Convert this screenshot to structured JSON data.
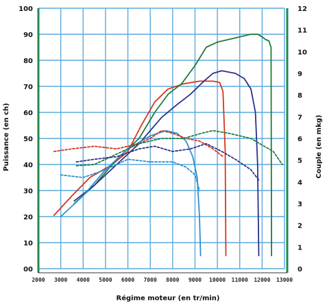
{
  "chart_data": {
    "type": "line",
    "title": "",
    "xlabel": "Régime moteur (en tr/min)",
    "ylabel": "Puissance (en ch)",
    "y2label": "Couple (en mkg)",
    "xlim": [
      2000,
      13000
    ],
    "ylim": [
      0,
      100
    ],
    "y2lim": [
      0,
      12
    ],
    "x_ticks": [
      2000,
      3000,
      4000,
      5000,
      6000,
      7000,
      8000,
      9000,
      10000,
      11000,
      12000,
      13000
    ],
    "x_tick_labels": [
      "2000",
      "3000",
      "4000",
      "5000",
      "6000",
      "7000",
      "8000",
      "9000",
      "10000",
      "11000",
      "12000",
      "13000"
    ],
    "y_ticks": [
      0,
      10,
      20,
      30,
      40,
      50,
      60,
      70,
      80,
      90,
      100
    ],
    "y_tick_labels": [
      "00",
      "10",
      "20",
      "30",
      "40",
      "50",
      "60",
      "70",
      "80",
      "90",
      "100"
    ],
    "y2_ticks": [
      0,
      1,
      2,
      3,
      4,
      5,
      6,
      7,
      8,
      9,
      10,
      11,
      12
    ],
    "y2_tick_labels": [
      "0",
      "1",
      "2",
      "3",
      "4",
      "5",
      "6",
      "7",
      "8",
      "9",
      "10",
      "11",
      "12"
    ],
    "grid": true,
    "colors": {
      "grid": "#5aa9dc",
      "axis": "#1f8a4c",
      "red": "#d4351c",
      "green": "#1d7a3a",
      "navy": "#2b2f86",
      "lightblue": "#2e8fd0"
    },
    "series": [
      {
        "color": "#d4351c",
        "dash": false,
        "axis": "left",
        "x": [
          2700,
          3500,
          4300,
          5300,
          6000,
          6600,
          7200,
          7800,
          8500,
          9200,
          9800,
          10100,
          10250,
          10350,
          10380
        ],
        "y": [
          20.5,
          28,
          35,
          40,
          45,
          55,
          64,
          69,
          71,
          72,
          72,
          71.5,
          68,
          45,
          5
        ]
      },
      {
        "color": "#1d7a3a",
        "dash": false,
        "axis": "left",
        "x": [
          3600,
          4500,
          5500,
          6500,
          7200,
          7800,
          8400,
          9000,
          9500,
          10000,
          10500,
          11000,
          11500,
          11800,
          12000,
          12150,
          12300,
          12400,
          12420
        ],
        "y": [
          25,
          32,
          42,
          50,
          60,
          67,
          71,
          78,
          85,
          87,
          88,
          89,
          90,
          90,
          89,
          88,
          87.5,
          85,
          5
        ]
      },
      {
        "color": "#2b2f86",
        "dash": false,
        "axis": "left",
        "x": [
          3600,
          4500,
          5500,
          6500,
          7500,
          8200,
          8800,
          9400,
          9800,
          10200,
          10800,
          11200,
          11500,
          11700,
          11800,
          11850
        ],
        "y": [
          26,
          32,
          40,
          48,
          58,
          63,
          67,
          72,
          75,
          76,
          75,
          73,
          69,
          60,
          40,
          5
        ]
      },
      {
        "color": "#2e8fd0",
        "dash": false,
        "axis": "left",
        "x": [
          3000,
          4000,
          5000,
          6000,
          7000,
          7700,
          8200,
          8600,
          8900,
          9100,
          9200,
          9250
        ],
        "y": [
          20,
          28,
          38,
          46,
          51,
          53,
          52,
          49,
          43,
          35,
          20,
          5
        ]
      },
      {
        "color": "#d4351c",
        "dash": true,
        "axis": "left",
        "x": [
          2700,
          3500,
          4500,
          5500,
          6500,
          7000,
          7500,
          8000,
          8600,
          9200,
          9800,
          10250
        ],
        "y": [
          45,
          46,
          47,
          46,
          48,
          50,
          53,
          52,
          50,
          49,
          46,
          43
        ]
      },
      {
        "color": "#1d7a3a",
        "dash": true,
        "axis": "left",
        "x": [
          3700,
          4500,
          5500,
          6500,
          7500,
          8500,
          9300,
          9800,
          10500,
          11500,
          12500,
          12900
        ],
        "y": [
          39.5,
          40,
          44,
          48,
          50,
          50,
          52,
          53,
          52,
          50,
          45,
          40
        ]
      },
      {
        "color": "#2b2f86",
        "dash": true,
        "axis": "left",
        "x": [
          3700,
          4500,
          5500,
          6500,
          7200,
          8000,
          8800,
          9500,
          10200,
          10800,
          11500,
          11850
        ],
        "y": [
          41,
          42,
          43,
          46,
          47,
          45,
          46,
          48,
          45,
          42,
          38,
          34
        ]
      },
      {
        "color": "#2e8fd0",
        "dash": true,
        "axis": "left",
        "x": [
          3000,
          4000,
          5000,
          6000,
          7000,
          8000,
          8600,
          9000,
          9200
        ],
        "y": [
          36,
          35,
          38,
          42,
          41,
          41,
          39,
          36,
          30
        ]
      }
    ]
  }
}
